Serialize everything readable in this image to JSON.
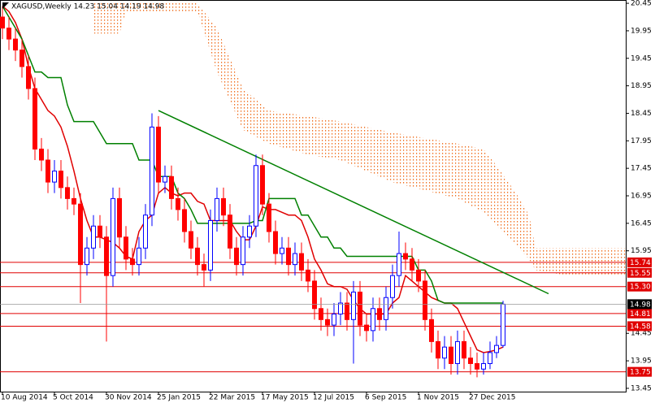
{
  "chart_data": {
    "type": "candlestick",
    "title": "XAGUSD,Weekly  14.23 15.04 14.19 14.98",
    "categories": [
      "10 Aug 2014",
      null,
      null,
      null,
      null,
      null,
      null,
      null,
      "5 Oct 2014",
      null,
      null,
      null,
      null,
      null,
      null,
      null,
      "30 Nov 2014",
      null,
      null,
      null,
      null,
      null,
      null,
      null,
      "25 Jan 2015",
      null,
      null,
      null,
      null,
      null,
      null,
      null,
      "22 Mar 2015",
      null,
      null,
      null,
      null,
      null,
      null,
      null,
      "17 May 2015",
      null,
      null,
      null,
      null,
      null,
      null,
      null,
      "12 Jul 2015",
      null,
      null,
      null,
      null,
      null,
      null,
      null,
      "6 Sep 2015",
      null,
      null,
      null,
      null,
      null,
      null,
      null,
      "1 Nov 2015",
      null,
      null,
      null,
      null,
      null,
      null,
      null,
      "27 Dec 2015",
      null,
      null,
      null,
      null,
      null
    ],
    "open": [
      20.2,
      20.0,
      19.8,
      19.6,
      19.3,
      18.9,
      17.8,
      17.6,
      17.2,
      17.4,
      17.1,
      16.9,
      16.8,
      15.7,
      16.0,
      16.4,
      16.2,
      15.5,
      16.9,
      16.2,
      15.8,
      15.7,
      16.0,
      16.6,
      18.2,
      17.2,
      17.3,
      16.9,
      16.7,
      16.3,
      16.0,
      15.7,
      15.6,
      16.5,
      16.9,
      16.6,
      16.0,
      15.7,
      16.2,
      16.4,
      17.5,
      16.8,
      16.3,
      15.9,
      16.0,
      15.7,
      15.9,
      15.6,
      15.4,
      14.9,
      14.7,
      14.6,
      14.8,
      15.0,
      14.7,
      15.2,
      14.6,
      14.5,
      14.9,
      14.7,
      15.1,
      15.5,
      15.9,
      15.8,
      15.6,
      15.4,
      14.7,
      14.3,
      14.0,
      14.2,
      13.9,
      14.3,
      14.0,
      13.9,
      13.8,
      13.9,
      14.1,
      14.23
    ],
    "high": [
      20.4,
      20.2,
      20.0,
      19.8,
      19.5,
      19.1,
      18.0,
      17.8,
      17.6,
      17.6,
      17.3,
      17.1,
      17.0,
      16.2,
      16.6,
      16.6,
      16.4,
      17.1,
      17.1,
      16.4,
      16.0,
      16.2,
      16.8,
      18.45,
      18.4,
      17.5,
      17.5,
      17.1,
      16.9,
      16.5,
      16.2,
      15.9,
      16.7,
      17.1,
      17.1,
      16.8,
      16.2,
      16.4,
      16.6,
      17.7,
      17.7,
      17.0,
      16.5,
      16.2,
      16.2,
      16.1,
      16.1,
      15.8,
      15.6,
      15.1,
      14.9,
      15.0,
      15.2,
      15.2,
      15.4,
      15.4,
      14.8,
      15.1,
      15.1,
      15.3,
      15.7,
      16.3,
      16.1,
      16.0,
      15.8,
      15.6,
      14.9,
      14.5,
      14.4,
      14.4,
      14.5,
      14.5,
      14.2,
      14.1,
      14.1,
      14.3,
      14.4,
      15.04
    ],
    "low": [
      19.8,
      19.6,
      19.4,
      19.1,
      18.7,
      17.6,
      17.4,
      17.0,
      17.0,
      16.9,
      16.7,
      16.6,
      15.0,
      15.5,
      15.8,
      16.0,
      14.3,
      15.3,
      16.0,
      15.6,
      15.5,
      15.5,
      15.8,
      16.4,
      17.0,
      17.0,
      16.7,
      16.5,
      16.1,
      15.8,
      15.5,
      15.3,
      15.4,
      16.3,
      16.4,
      15.8,
      15.5,
      15.5,
      16.0,
      16.2,
      16.6,
      16.1,
      15.7,
      15.7,
      15.5,
      15.5,
      15.4,
      15.2,
      14.7,
      14.5,
      14.4,
      14.4,
      14.6,
      14.5,
      13.9,
      14.4,
      14.3,
      14.3,
      14.5,
      14.5,
      14.9,
      15.3,
      15.6,
      15.4,
      15.2,
      14.5,
      14.1,
      13.8,
      13.8,
      13.7,
      13.7,
      13.8,
      13.7,
      13.65,
      13.7,
      13.8,
      14.0,
      14.19
    ],
    "close": [
      20.0,
      19.8,
      19.6,
      19.3,
      18.9,
      17.8,
      17.6,
      17.2,
      17.4,
      17.1,
      16.9,
      16.8,
      15.7,
      16.0,
      16.4,
      16.2,
      15.5,
      16.9,
      16.2,
      15.8,
      15.7,
      16.0,
      16.6,
      18.2,
      17.2,
      17.3,
      16.9,
      16.7,
      16.3,
      16.0,
      15.7,
      15.6,
      16.5,
      16.9,
      16.6,
      16.0,
      15.7,
      16.2,
      16.4,
      17.5,
      16.8,
      16.3,
      15.9,
      16.0,
      15.7,
      15.9,
      15.6,
      15.4,
      14.9,
      14.7,
      14.6,
      14.8,
      15.0,
      14.7,
      15.2,
      14.6,
      14.5,
      14.9,
      14.7,
      15.1,
      15.5,
      15.9,
      15.8,
      15.6,
      15.4,
      14.7,
      14.3,
      14.0,
      14.2,
      13.9,
      14.3,
      14.0,
      13.9,
      13.8,
      13.9,
      14.1,
      14.23,
      14.98
    ],
    "up_color": "#0000ff",
    "down_color": "#ff0000",
    "lines": [
      {
        "color": "#e00000",
        "values": [
          20.4,
          20.3,
          20.1,
          19.8,
          19.3,
          18.9,
          18.7,
          18.5,
          18.4,
          18.2,
          17.85,
          17.4,
          16.9,
          16.5,
          16.2,
          16.2,
          16.15,
          16.1,
          16.0,
          15.85,
          15.8,
          16.3,
          16.5,
          16.6,
          17.0,
          17.1,
          17.0,
          16.95,
          17.0,
          17.0,
          16.85,
          16.8,
          16.5,
          16.5,
          16.5,
          16.5,
          16.3,
          16.15,
          16.15,
          16.4,
          16.75,
          16.7,
          16.7,
          16.65,
          16.6,
          16.6,
          16.5,
          16.2,
          15.8,
          15.6,
          15.35,
          15.3,
          15.3,
          15.25,
          15.05,
          14.9,
          14.8,
          14.8,
          14.8,
          14.8,
          15.0,
          15.1,
          15.5,
          15.4,
          15.3,
          15.2,
          15.1,
          15.05,
          15.0,
          15.0,
          14.9,
          14.65,
          14.4,
          14.15,
          14.1,
          14.12,
          14.15,
          14.2
        ]
      },
      {
        "color": "#008000",
        "values": [
          20.4,
          20.2,
          20.0,
          19.8,
          19.5,
          19.2,
          19.2,
          19.1,
          19.1,
          19.1,
          18.6,
          18.3,
          18.3,
          18.3,
          18.3,
          18.1,
          17.9,
          17.9,
          17.9,
          17.9,
          17.9,
          17.6,
          17.6,
          17.6,
          17.3,
          17.3,
          17.3,
          17.0,
          16.9,
          16.7,
          16.45,
          16.45,
          16.45,
          16.45,
          16.45,
          16.45,
          16.45,
          16.45,
          16.45,
          16.5,
          16.5,
          16.9,
          16.9,
          16.9,
          16.9,
          16.9,
          16.6,
          16.6,
          16.4,
          16.2,
          16.2,
          16.0,
          16.0,
          15.85,
          15.85,
          15.85,
          15.85,
          15.85,
          15.85,
          15.85,
          15.85,
          15.85,
          15.85,
          15.85,
          15.6,
          15.6,
          15.4,
          15.05,
          15.0,
          15.0,
          15.0,
          15.0,
          15.0,
          15.0,
          15.0,
          15.0,
          15.0,
          15.0
        ]
      }
    ],
    "cloud": {
      "color": "#f07020",
      "x": [
        14,
        18,
        19,
        30,
        33,
        37,
        41,
        47,
        52,
        60,
        70,
        74,
        76,
        79,
        81,
        82,
        87,
        96
      ],
      "upper": [
        20.45,
        20.45,
        20.45,
        20.45,
        20.0,
        18.9,
        18.5,
        18.4,
        18.3,
        18.1,
        17.9,
        17.8,
        17.5,
        17.0,
        16.6,
        16.0,
        16.0,
        16.0
      ],
      "lower": [
        19.9,
        19.9,
        20.3,
        20.3,
        19.2,
        18.15,
        17.9,
        17.7,
        17.6,
        17.2,
        16.9,
        16.65,
        16.4,
        16.05,
        15.8,
        15.6,
        15.5,
        15.5
      ]
    },
    "trendline": {
      "color": "#008000",
      "x": [
        24,
        84
      ],
      "y": [
        18.5,
        15.17
      ]
    },
    "levels": [
      {
        "value": 15.74,
        "label": "15.74"
      },
      {
        "value": 15.55,
        "label": "15.55"
      },
      {
        "value": {
          "value": 15.3,
          "label": "15.30"
        }
      },
      {
        "value": 14.81,
        "label": "14.81"
      },
      {
        "value": 14.58,
        "label": "14.58"
      },
      {
        "value": 13.75,
        "label": "13.75"
      }
    ],
    "level_color": "#e00000",
    "price": {
      "value": 14.98,
      "label": "14.98",
      "color": "#000000"
    },
    "ylim": [
      13.39,
      20.51
    ],
    "yticks": [
      20.45,
      19.95,
      19.45,
      18.95,
      18.45,
      17.95,
      17.45,
      16.95,
      16.45,
      15.95,
      14.45,
      13.95,
      13.45
    ]
  }
}
